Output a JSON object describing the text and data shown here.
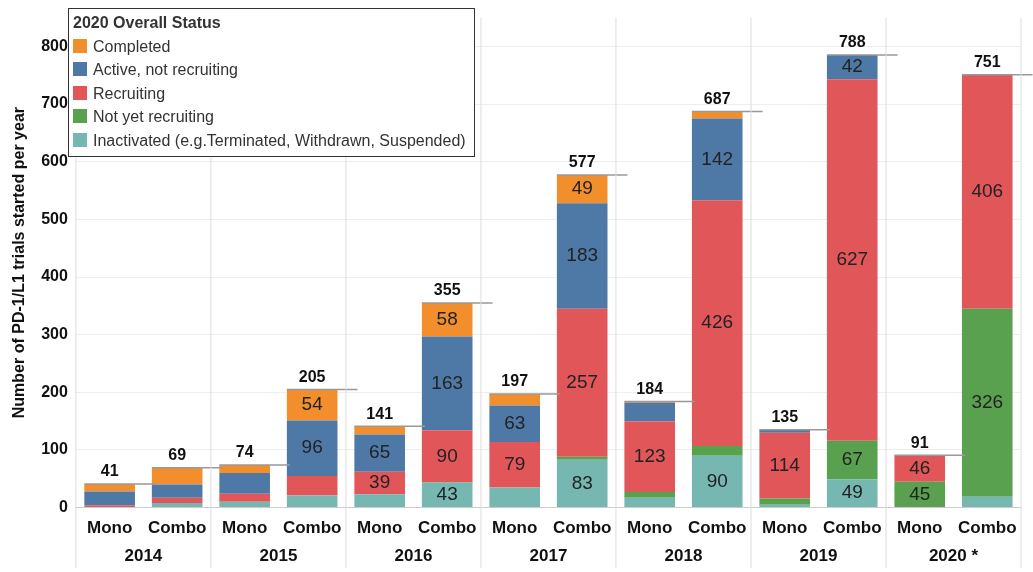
{
  "chart_data": {
    "type": "bar",
    "stacked": true,
    "ylabel": "Number of PD-1/L1 trials started per year",
    "legend_title": "2020 Overall Status",
    "legend": "top left",
    "grid": "y",
    "categories": [
      "Mono",
      "Combo",
      "Mono",
      "Combo",
      "Mono",
      "Combo",
      "Mono",
      "Combo",
      "Mono",
      "Combo",
      "Mono",
      "Combo",
      "Mono",
      "Combo"
    ],
    "ylim": [
      0,
      850
    ],
    "yticks": [
      0,
      100,
      200,
      300,
      400,
      500,
      600,
      700,
      800
    ],
    "series": [
      {
        "name": "Inactivated (e.g.Terminated, Withdrawn, Suspended)",
        "color": "#76b7b2",
        "values": [
          1,
          8,
          10,
          21,
          23,
          43,
          35,
          83,
          17,
          90,
          5,
          49,
          0,
          19
        ],
        "value_labels": [
          null,
          null,
          null,
          null,
          null,
          "43",
          null,
          "83",
          null,
          "90",
          null,
          "49",
          null,
          null
        ]
      },
      {
        "name": "Not yet recruiting",
        "color": "#59a14f",
        "values": [
          0,
          0,
          0,
          0,
          0,
          1,
          0,
          5,
          10,
          17,
          11,
          67,
          45,
          326
        ],
        "value_labels": [
          null,
          null,
          null,
          null,
          null,
          null,
          null,
          null,
          null,
          null,
          null,
          "67",
          "45",
          "326"
        ]
      },
      {
        "name": "Recruiting",
        "color": "#e15759",
        "values": [
          3,
          9,
          14,
          34,
          39,
          90,
          79,
          257,
          123,
          426,
          114,
          627,
          46,
          406
        ],
        "value_labels": [
          null,
          null,
          null,
          null,
          "39",
          "90",
          "79",
          "257",
          "123",
          "426",
          "114",
          "627",
          "46",
          "406"
        ]
      },
      {
        "name": "Active, not recruiting",
        "color": "#4e79a7",
        "values": [
          24,
          23,
          36,
          96,
          65,
          163,
          63,
          183,
          32,
          142,
          5,
          42,
          0,
          0
        ],
        "value_labels": [
          null,
          null,
          null,
          "96",
          "65",
          "163",
          "63",
          "183",
          null,
          "142",
          null,
          "42",
          null,
          null
        ]
      },
      {
        "name": "Completed",
        "color": "#f28e2b",
        "values": [
          13,
          29,
          14,
          54,
          14,
          58,
          20,
          49,
          2,
          12,
          0,
          0,
          0,
          0
        ],
        "value_labels": [
          null,
          null,
          null,
          "54",
          null,
          "58",
          null,
          "49",
          null,
          null,
          null,
          null,
          null,
          null
        ]
      }
    ],
    "totals": [
      "41",
      "69",
      "74",
      "205",
      "141",
      "355",
      "197",
      "577",
      "184",
      "687",
      "135",
      "788",
      "91",
      "751"
    ],
    "annotations": [
      "2014",
      "2015",
      "2016",
      "2017",
      "2018",
      "2019",
      "2020 *"
    ]
  }
}
